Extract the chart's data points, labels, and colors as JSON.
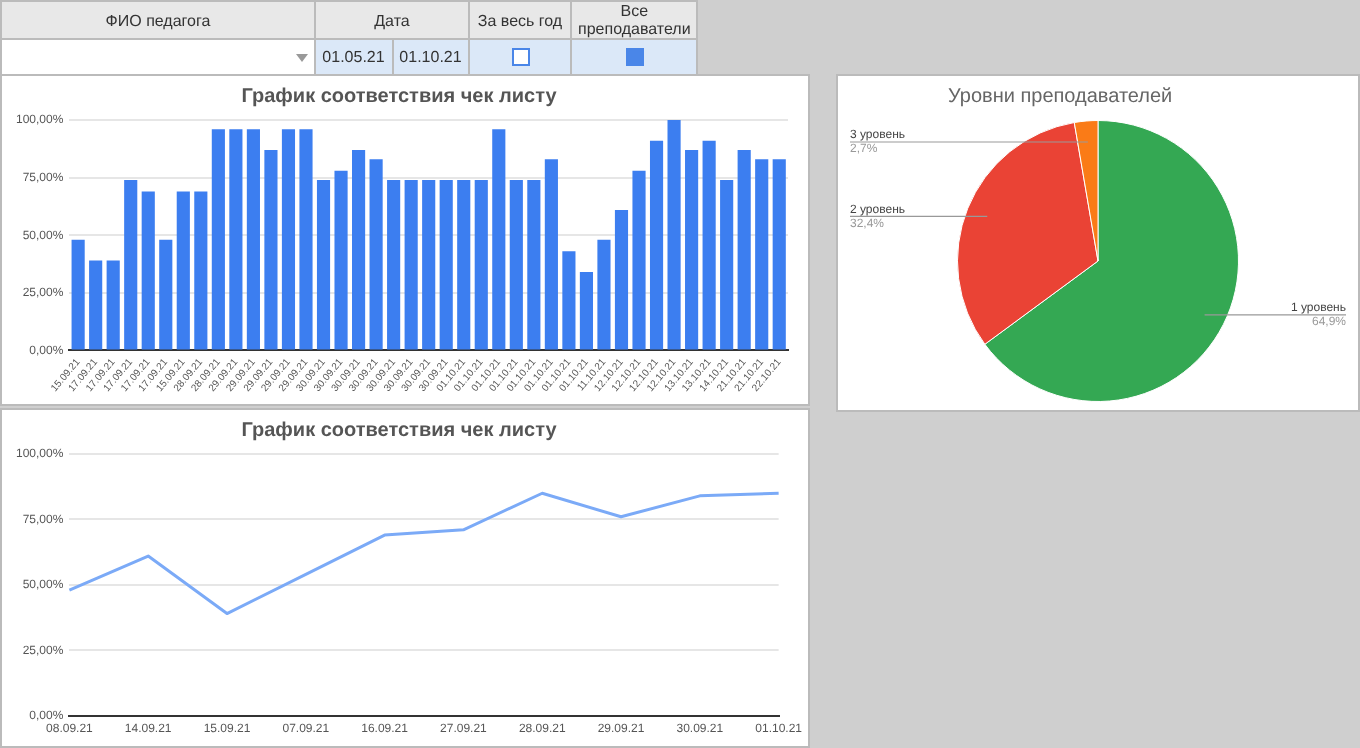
{
  "chart_data": [
    {
      "type": "other",
      "annotations": [
        "ФИО педагога",
        "Дата",
        "За весь год",
        "Все преподаватели",
        "01.05.21",
        "01.10.21"
      ]
    },
    {
      "type": "bar",
      "title": "График соответствия чек листу",
      "categories": [
        "15.09.21",
        "17.09.21",
        "17.09.21",
        "17.09.21",
        "17.09.21",
        "17.09.21",
        "15.09.21",
        "28.09.21",
        "28.09.21",
        "29.09.21",
        "29.09.21",
        "29.09.21",
        "29.09.21",
        "29.09.21",
        "30.09.21",
        "30.09.21",
        "30.09.21",
        "30.09.21",
        "30.09.21",
        "30.09.21",
        "30.09.21",
        "30.09.21",
        "01.10.21",
        "01.10.21",
        "01.10.21",
        "01.10.21",
        "01.10.21",
        "01.10.21",
        "01.10.21",
        "01.10.21",
        "11.10.21",
        "12.10.21",
        "12.10.21",
        "12.10.21",
        "12.10.21",
        "13.10.21",
        "13.10.21",
        "14.10.21",
        "21.10.21",
        "21.10.21",
        "22.10.21"
      ],
      "values": [
        48,
        39,
        39,
        74,
        69,
        48,
        69,
        69,
        96,
        96,
        96,
        87,
        96,
        96,
        74,
        78,
        87,
        83,
        74,
        74,
        74,
        74,
        74,
        74,
        96,
        74,
        74,
        83,
        43,
        34,
        48,
        61,
        78,
        91,
        100,
        87,
        91,
        74,
        87,
        83,
        83
      ],
      "color": "#3c7ef0",
      "ylim": [
        0,
        100
      ],
      "yticks": [
        {
          "value": 0,
          "label": "0,00%"
        },
        {
          "value": 25,
          "label": "25,00%"
        },
        {
          "value": 50,
          "label": "50,00%"
        },
        {
          "value": 75,
          "label": "75,00%"
        },
        {
          "value": 100,
          "label": "100,00%"
        }
      ],
      "grid": "y"
    },
    {
      "type": "pie",
      "title": "Уровни преподавателей",
      "categories": [
        "1 уровень",
        "2 уровень",
        "3 уровень"
      ],
      "values": [
        64.9,
        32.4,
        2.7
      ],
      "colors": [
        "#34a853",
        "#ea4335",
        "#fa7b17"
      ],
      "value_labels": [
        "64,9%",
        "32,4%",
        "2,7%"
      ]
    },
    {
      "type": "line",
      "title": "График соответствия чек листу",
      "categories": [
        "08.09.21",
        "14.09.21",
        "15.09.21",
        "07.09.21",
        "16.09.21",
        "27.09.21",
        "28.09.21",
        "29.09.21",
        "30.09.21",
        "01.10.21"
      ],
      "values": [
        48,
        61,
        39,
        54,
        69,
        71,
        85,
        76,
        84,
        85
      ],
      "color": "#7baaf7",
      "ylim": [
        0,
        100
      ],
      "yticks": [
        {
          "value": 0,
          "label": "0,00%"
        },
        {
          "value": 25,
          "label": "25,00%"
        },
        {
          "value": 50,
          "label": "50,00%"
        },
        {
          "value": 75,
          "label": "75,00%"
        },
        {
          "value": 100,
          "label": "100,00%"
        }
      ],
      "grid": "y",
      "marker": "none"
    }
  ]
}
